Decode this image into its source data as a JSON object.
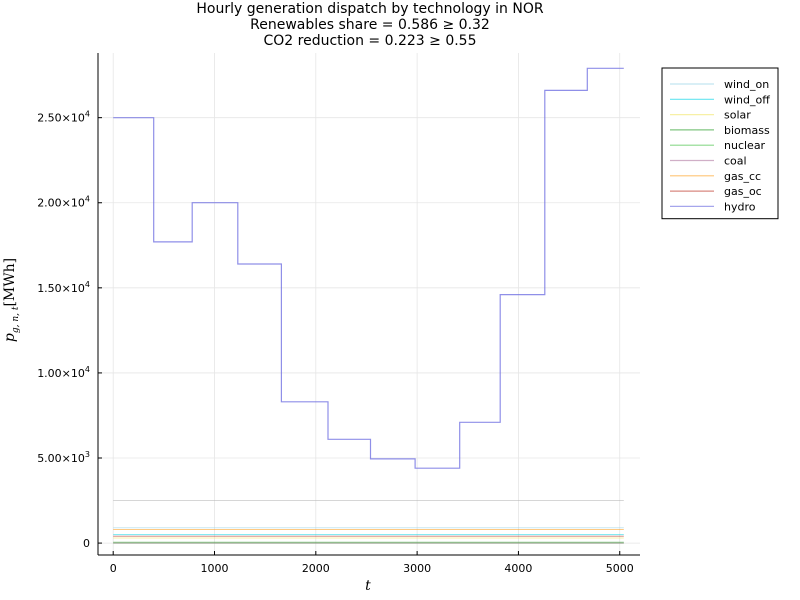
{
  "chart_data": {
    "type": "line",
    "title": [
      "Hourly generation dispatch by technology in NOR",
      "Renewables share = 0.586 ≥ 0.32",
      "CO2 reduction = 0.223 ≥ 0.55"
    ],
    "xlabel": "t",
    "ylabel": "p",
    "ylabel_sub": "g, n, t",
    "ylabel_unit": "[MWh]",
    "xlim": [
      -150,
      5200
    ],
    "ylim": [
      -700,
      28800
    ],
    "xticks": [
      0,
      1000,
      2000,
      3000,
      4000,
      5000
    ],
    "xtick_labels": [
      "0",
      "1000",
      "2000",
      "3000",
      "4000",
      "5000"
    ],
    "yticks": [
      0,
      5000,
      10000,
      15000,
      20000,
      25000
    ],
    "ytick_labels": [
      {
        "mant": "0",
        "exp": ""
      },
      {
        "mant": "5.00×10",
        "exp": "3"
      },
      {
        "mant": "1.00×10",
        "exp": "4"
      },
      {
        "mant": "1.50×10",
        "exp": "4"
      },
      {
        "mant": "2.00×10",
        "exp": "4"
      },
      {
        "mant": "2.50×10",
        "exp": "4"
      }
    ],
    "grid": true,
    "legend_position": "outer-top-right",
    "series": [
      {
        "name": "wind_on",
        "color": "#9ad3e6",
        "values": [
          [
            0,
            900
          ],
          [
            5040,
            900
          ]
        ]
      },
      {
        "name": "wind_off",
        "color": "#00d4e6",
        "values": [
          [
            0,
            500
          ],
          [
            5040,
            500
          ]
        ]
      },
      {
        "name": "solar",
        "color": "#f2e66b",
        "values": [
          [
            0,
            300
          ],
          [
            5040,
            300
          ]
        ]
      },
      {
        "name": "biomass",
        "color": "#2ca02c",
        "values": [
          [
            0,
            50
          ],
          [
            5040,
            50
          ]
        ]
      },
      {
        "name": "nuclear",
        "color": "#3fbf3f",
        "values": [
          [
            0,
            0
          ],
          [
            5040,
            0
          ]
        ]
      },
      {
        "name": "coal",
        "color": "#b07aa1",
        "values": [
          [
            0,
            0
          ],
          [
            5040,
            0
          ]
        ]
      },
      {
        "name": "gas_cc",
        "color": "#ff9f1c",
        "values": [
          [
            0,
            800
          ],
          [
            5040,
            800
          ]
        ]
      },
      {
        "name": "gas_oc",
        "color": "#c0392b",
        "values": [
          [
            0,
            400
          ],
          [
            5040,
            400
          ]
        ]
      },
      {
        "name": "hydro",
        "color": "#6a6ae0",
        "values": [
          [
            0,
            25000
          ],
          [
            400,
            25000
          ],
          [
            400,
            17700
          ],
          [
            780,
            17700
          ],
          [
            780,
            20000
          ],
          [
            1230,
            20000
          ],
          [
            1230,
            16400
          ],
          [
            1660,
            16400
          ],
          [
            1660,
            8300
          ],
          [
            2120,
            8300
          ],
          [
            2120,
            6100
          ],
          [
            2540,
            6100
          ],
          [
            2540,
            4950
          ],
          [
            2980,
            4950
          ],
          [
            2980,
            4400
          ],
          [
            3420,
            4400
          ],
          [
            3420,
            7100
          ],
          [
            3820,
            7100
          ],
          [
            3820,
            14600
          ],
          [
            4260,
            14600
          ],
          [
            4260,
            26600
          ],
          [
            4680,
            26600
          ],
          [
            4680,
            27900
          ],
          [
            5040,
            27900
          ]
        ]
      },
      {
        "name": "",
        "color": "#b4b4b4",
        "values": [
          [
            0,
            2500
          ],
          [
            5040,
            2500
          ]
        ]
      }
    ]
  }
}
